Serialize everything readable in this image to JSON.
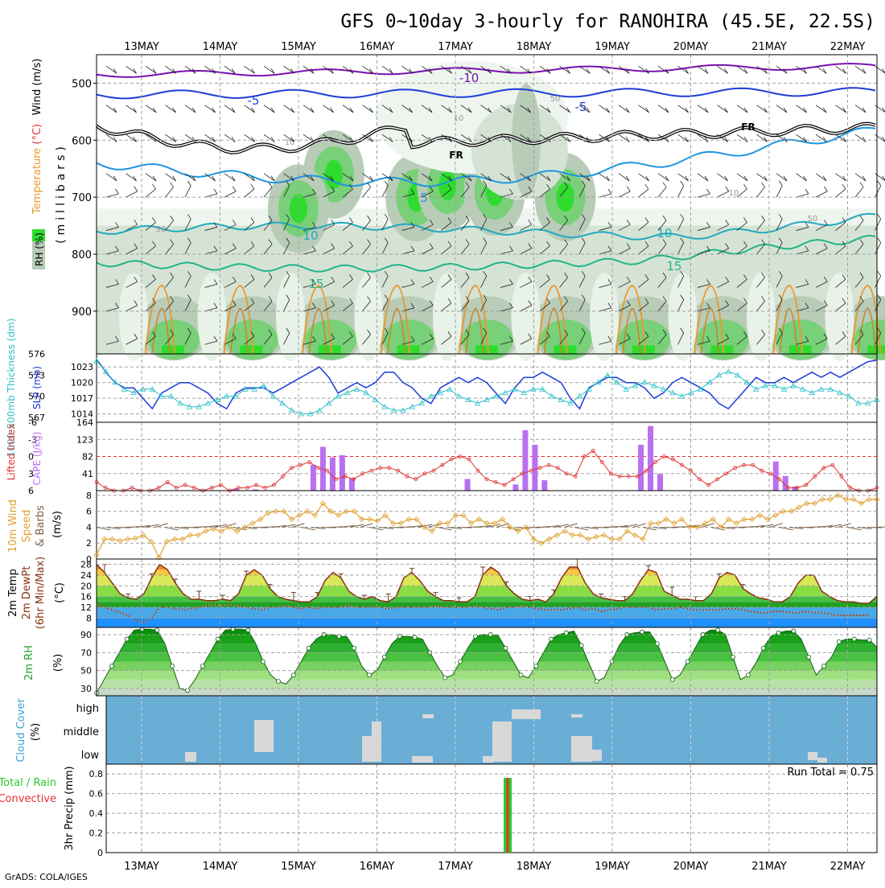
{
  "title": "GFS 0~10day 3-hourly for RANOHIRA (45.5E, 22.5S)",
  "footer": "GrADS: COLA/IGES",
  "dates": [
    "13MAY",
    "14MAY",
    "15MAY",
    "16MAY",
    "17MAY",
    "18MAY",
    "19MAY",
    "20MAY",
    "21MAY",
    "22MAY"
  ],
  "chart_data": [
    {
      "type": "heatmap",
      "name": "RH / Temperature / Wind cross-section",
      "ylabel_parts": [
        "RH (%)",
        "Temperature (°C)",
        "Wind (m/s)"
      ],
      "yunit": "(millibars)",
      "yticks": [
        500,
        600,
        700,
        800,
        900
      ],
      "ylim": [
        450,
        975
      ],
      "rh_shade_colors": [
        "#eef5ee",
        "#d5e3d5",
        "#b8ccb8",
        "#78d078",
        "#2edc2e",
        "#00c800"
      ],
      "isotherm_labels": [
        {
          "value": "-10",
          "color": "#7a10b0",
          "level": 490
        },
        {
          "value": "-5",
          "color": "#1c3cd8",
          "level": 530
        },
        {
          "value": "FR",
          "color": "#000000",
          "level": 580
        },
        {
          "value": "5",
          "color": "#1e96e0",
          "level": 690
        },
        {
          "value": "10",
          "color": "#20aac0",
          "level": 755
        },
        {
          "value": "15",
          "color": "#20b488",
          "level": 830
        }
      ],
      "rh_contour_labels": [
        "10",
        "30",
        "50",
        "70"
      ]
    },
    {
      "type": "line",
      "name": "SLP and 1000-500mb thickness",
      "y_left_label": "1000-500mb Thickness (dm)",
      "y_right_label": "SLP (mb)",
      "thickness_ticks": [
        567,
        570,
        573,
        576
      ],
      "slp_ticks": [
        1014,
        1017,
        1020,
        1023
      ],
      "thickness_lim": [
        566.3,
        576
      ],
      "slp_lim": [
        1012.4,
        1025.5
      ],
      "slp_color": "#1c3cd8",
      "thickness_color": "#30c0c8",
      "slp": [
        1024.5,
        1022,
        1020,
        1019,
        1019,
        1017,
        1015,
        1018,
        1019,
        1020,
        1020,
        1019,
        1018,
        1016,
        1015,
        1018,
        1019,
        1019,
        1019,
        1018,
        1019,
        1020,
        1021,
        1022,
        1023,
        1021,
        1018,
        1019,
        1020,
        1019,
        1020,
        1022,
        1022,
        1020,
        1019,
        1017,
        1016,
        1019,
        1020,
        1021,
        1020,
        1021,
        1020,
        1018,
        1016,
        1019,
        1021,
        1021,
        1022,
        1021,
        1020,
        1017,
        1015,
        1019,
        1020,
        1021,
        1021,
        1020,
        1020,
        1019,
        1017,
        1018,
        1020,
        1021,
        1020,
        1019,
        1018,
        1016,
        1015,
        1017,
        1019,
        1021,
        1020,
        1020,
        1021,
        1020,
        1021,
        1022,
        1021,
        1022,
        1021,
        1022,
        1023,
        1024,
        1024.3
      ],
      "thickness": [
        575,
        573.5,
        572,
        571,
        570.5,
        571,
        571,
        570,
        570,
        569,
        568.5,
        568.5,
        569,
        569.5,
        570,
        570,
        571,
        571,
        571.5,
        570,
        569,
        568,
        567.5,
        567.5,
        568,
        569,
        570,
        570.5,
        571,
        570.5,
        569.5,
        568.5,
        568,
        568,
        568.5,
        569,
        570,
        570.5,
        571,
        570,
        569.5,
        569,
        569.5,
        570,
        570.5,
        571,
        570.5,
        571,
        571,
        570,
        569.5,
        569,
        570,
        571,
        572,
        573,
        572,
        571,
        571.5,
        572,
        571.5,
        571,
        570.5,
        570,
        570.5,
        571,
        572,
        573,
        573.5,
        573,
        572,
        571,
        571.5,
        571.5,
        571,
        571.5,
        571,
        570.5,
        571,
        571,
        570.5,
        570,
        569,
        569,
        569.5
      ]
    },
    {
      "type": "bar",
      "name": "CAPE and Lifted Index",
      "y_left_label": "Lifted Index",
      "y_right_label": "CAPE (J/kg)",
      "li_ticks": [
        "-6",
        "-3",
        "0",
        "3",
        "6"
      ],
      "li_lim": [
        6,
        -6
      ],
      "cape_ticks": [
        41,
        82,
        123,
        164
      ],
      "cape_lim": [
        0,
        164
      ],
      "cape_color": "#b870f0",
      "li_color": "#e03030",
      "cape": [
        0,
        0,
        0,
        0,
        0,
        0,
        0,
        0,
        0,
        0,
        0,
        0,
        0,
        0,
        5,
        0,
        3,
        0,
        0,
        0,
        0,
        0,
        62,
        105,
        80,
        85,
        30,
        0,
        0,
        0,
        0,
        0,
        0,
        0,
        0,
        0,
        0,
        0,
        28,
        0,
        0,
        0,
        0,
        15,
        145,
        110,
        25,
        0,
        0,
        0,
        0,
        0,
        0,
        0,
        0,
        0,
        110,
        155,
        40,
        0,
        0,
        0,
        0,
        0,
        0,
        0,
        0,
        0,
        0,
        0,
        70,
        35,
        10,
        0,
        0,
        0,
        0,
        0,
        0,
        0,
        0,
        0,
        8,
        0,
        0,
        0,
        0,
        0,
        0,
        0,
        0,
        0,
        0,
        0,
        0,
        0,
        0,
        0,
        0,
        0,
        0,
        0,
        0,
        0,
        0,
        5,
        0,
        0,
        0,
        0,
        0,
        0,
        0,
        0,
        0,
        0,
        0,
        0,
        0,
        0,
        0,
        0,
        0,
        0,
        0,
        0,
        0,
        0,
        0,
        0,
        0,
        0,
        0,
        0,
        0,
        0,
        0,
        0,
        0,
        0,
        0,
        0,
        0,
        0,
        0,
        0,
        0,
        0,
        0,
        0,
        0,
        0,
        0,
        0,
        0,
        0,
        0,
        0,
        0,
        0,
        0,
        0,
        0,
        0,
        0,
        0,
        0,
        0,
        0,
        0,
        0,
        0,
        0,
        0,
        0,
        0,
        0,
        0,
        0,
        0,
        0,
        0,
        0,
        0,
        0
      ],
      "li": [
        4.5,
        5.5,
        6,
        6,
        5.5,
        6,
        6,
        5.5,
        4.5,
        5.5,
        5,
        5.5,
        6,
        5.5,
        5,
        6,
        5.5,
        5.5,
        5,
        5.5,
        5,
        3.5,
        2,
        1.5,
        1,
        2,
        2.5,
        4,
        3.5,
        4,
        3,
        2.5,
        2,
        2,
        2.5,
        3.5,
        4,
        3,
        2.5,
        1.5,
        0.5,
        0,
        0.5,
        2.5,
        4,
        4.5,
        5,
        4,
        3,
        2.5,
        2,
        1.5,
        2,
        3,
        3.5,
        0,
        -1,
        1,
        3,
        3.5,
        3.5,
        3.5,
        2.5,
        1,
        0,
        0.5,
        1.5,
        2.5,
        4,
        5,
        4,
        3,
        2,
        1.5,
        1.5,
        2.5,
        3,
        4,
        5.5,
        5.5,
        5,
        3.5,
        2,
        1.5,
        3.5,
        5.5,
        6,
        6,
        5.5
      ]
    },
    {
      "type": "line",
      "name": "10m Wind Speed and Barbs",
      "ylabel_parts": [
        "10m Wind",
        "Speed",
        "& Barbs"
      ],
      "yunit": "(m/s)",
      "yticks": [
        0,
        2,
        4,
        6,
        8
      ],
      "ylim": [
        0,
        8.6
      ],
      "color": "#e0a030",
      "barb_color": "#7a6048",
      "speed": [
        0.5,
        2.5,
        2.5,
        2.3,
        2.5,
        2.6,
        3,
        2.2,
        0.2,
        2.2,
        2.5,
        2.5,
        3,
        3,
        3.5,
        3.8,
        3.5,
        4,
        3.5,
        4,
        4.5,
        5,
        5.8,
        6,
        6,
        5,
        5.5,
        6,
        5.5,
        7,
        6,
        5.5,
        6,
        6,
        5,
        5,
        4.8,
        5.5,
        4.5,
        4.5,
        5,
        5,
        4,
        3.5,
        4.5,
        4.5,
        5.5,
        5.5,
        4.5,
        5,
        4.5,
        4.5,
        5,
        4,
        3.5,
        4,
        2.5,
        2,
        2.5,
        3,
        3.5,
        3,
        3,
        2.5,
        2.8,
        3,
        2.5,
        2.5,
        3.5,
        3,
        2.5,
        4.5,
        4.5,
        5,
        4.5,
        5,
        4,
        4,
        4.5,
        5,
        4,
        5,
        4.5,
        5,
        5,
        5.5,
        5,
        5.5,
        6,
        6,
        6.5,
        7,
        7,
        7.5,
        7.5,
        8,
        7.5,
        7.5,
        7,
        7.5,
        7.5
      ]
    },
    {
      "type": "area",
      "name": "2m Temp / DewPt",
      "ylabel_parts": [
        "2m Temp",
        "2m DewPt",
        "(6hr Min/Max)"
      ],
      "yunit": "(°C)",
      "yticks": [
        8,
        12,
        16,
        20,
        24,
        28
      ],
      "ylim": [
        4.5,
        30
      ],
      "band_colors": [
        "#1e90ff",
        "#48a8e8",
        "#22a022",
        "#44c044",
        "#88dd44",
        "#d8e858",
        "#f8c840",
        "#f09030"
      ],
      "temp": [
        28,
        25,
        21,
        17,
        15.5,
        15,
        17,
        23,
        28,
        26,
        21,
        17,
        15,
        15,
        14.5,
        14.5,
        15,
        14.5,
        17,
        24,
        26,
        24,
        19,
        16,
        15,
        14.5,
        14,
        14,
        16,
        22,
        25,
        23,
        18,
        16,
        15,
        16,
        14.5,
        14,
        16,
        23,
        25,
        22,
        18,
        16,
        14.5,
        14.5,
        14,
        14,
        16,
        24,
        27,
        25,
        20,
        17,
        15,
        14.5,
        15,
        14,
        17,
        23,
        27,
        27,
        21,
        17,
        15.5,
        15,
        14.5,
        14.5,
        17,
        22,
        26,
        25,
        18,
        16.5,
        15,
        15,
        14.5,
        14.5,
        17,
        23,
        25,
        24,
        19,
        17,
        15.5,
        15,
        14,
        14,
        16,
        21,
        24,
        24,
        18,
        16,
        14.5,
        14,
        14,
        13.5,
        13.5,
        16
      ],
      "dewpt": [
        13,
        12,
        11,
        10,
        9,
        7,
        6.5,
        8,
        12,
        12,
        11.5,
        11,
        11.5,
        12,
        12.5,
        13,
        12.5,
        13,
        12.5,
        12,
        11.5,
        11,
        12,
        12,
        12.5,
        12,
        11.5,
        12,
        11.5,
        12,
        12,
        12,
        12.5,
        12,
        12,
        12,
        12,
        11.5,
        12,
        12,
        12,
        12,
        12,
        12.5,
        12,
        12,
        12,
        12,
        12.5,
        12,
        11.5,
        11,
        12,
        12,
        12.5,
        12,
        11.5,
        11,
        11,
        11,
        11.5,
        12,
        11,
        11.5,
        10.5,
        11,
        11.5,
        12,
        12,
        12,
        12,
        11,
        11.5,
        11.5,
        12,
        11.5,
        11,
        11,
        11,
        11,
        11.5,
        11.5,
        11,
        10.5,
        10,
        10,
        10.5,
        10.5,
        10,
        10,
        10.5,
        10,
        10,
        9.5,
        9,
        9,
        9,
        9,
        9
      ]
    },
    {
      "type": "area",
      "name": "2m RH",
      "ylabel_parts": [
        "2m RH"
      ],
      "yunit": "(%)",
      "yticks": [
        30,
        50,
        70,
        90
      ],
      "ylim": [
        22,
        98
      ],
      "rh": [
        25,
        40,
        55,
        70,
        85,
        95,
        96,
        96,
        95,
        80,
        55,
        30,
        28,
        40,
        55,
        70,
        85,
        95,
        96,
        96,
        95,
        80,
        60,
        45,
        38,
        35,
        45,
        60,
        75,
        85,
        90,
        90,
        88,
        88,
        75,
        55,
        45,
        50,
        65,
        80,
        88,
        88,
        87,
        85,
        70,
        55,
        42,
        45,
        60,
        75,
        88,
        90,
        90,
        89,
        75,
        60,
        45,
        42,
        55,
        70,
        85,
        90,
        92,
        94,
        78,
        58,
        38,
        42,
        60,
        78,
        90,
        92,
        93,
        93,
        80,
        60,
        40,
        45,
        60,
        75,
        90,
        95,
        95,
        90,
        65,
        40,
        45,
        58,
        75,
        88,
        92,
        94,
        94,
        85,
        65,
        45,
        55,
        65,
        82,
        85,
        85,
        84,
        84,
        76
      ]
    },
    {
      "type": "bar",
      "name": "Cloud Cover",
      "ylabel_parts": [
        "Cloud Cover",
        "(%)"
      ],
      "levels": [
        "high",
        "middle",
        "low"
      ],
      "background": "#6aaed6",
      "cloud_color": "#d8d8d8"
    },
    {
      "type": "bar",
      "name": "3hr Precip",
      "ylabel_parts": [
        "3hr Precip (mm)"
      ],
      "legend_parts": [
        "Total / Rain",
        "Convective"
      ],
      "yticks": [
        0,
        0.2,
        0.4,
        0.6,
        0.8
      ],
      "ylim": [
        0,
        0.9
      ],
      "run_total": "Run Total = 0.75",
      "total_color": "#2ec82e",
      "conv_color": "#e83030",
      "bars": [
        {
          "date": "17MAY",
          "hours_after": 16,
          "total": 0.76,
          "convective": 0.76
        }
      ]
    }
  ]
}
